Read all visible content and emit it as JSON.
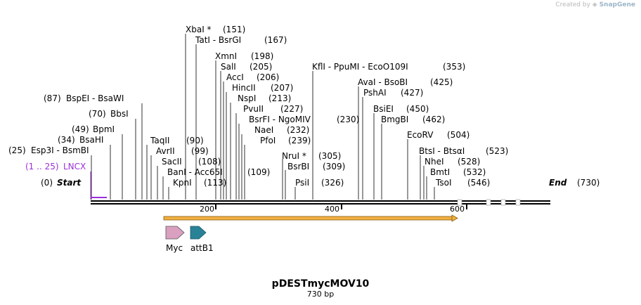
{
  "watermark": {
    "prefix": "Created by",
    "brand": "SnapGene"
  },
  "map": {
    "name": "pDESTmycMOV10",
    "length_label": "730 bp",
    "total_bp": 730
  },
  "ends": {
    "start": {
      "label": "Start",
      "pos": "(0)"
    },
    "end": {
      "label": "End",
      "pos": "(730)"
    }
  },
  "ticks": [
    "200",
    "400",
    "600"
  ],
  "feature_label": {
    "name": "LNCX",
    "range": "(1 .. 25)"
  },
  "features": [
    {
      "name": "Myc",
      "color": "#d9a0c0"
    },
    {
      "name": "attB1",
      "color": "#2a8296"
    }
  ],
  "orf_color": "#f0b040",
  "sites_left": [
    {
      "names": "Esp3I - BsmBI",
      "pos": "(25)"
    },
    {
      "names": "BsaHI",
      "pos": "(34)"
    },
    {
      "names": "BpmI",
      "pos": "(49)"
    },
    {
      "names": "BbsI",
      "pos": "(70)"
    },
    {
      "names": "BspEI - BsaWI",
      "pos": "(87)"
    }
  ],
  "sites_right": [
    {
      "names": "XbaI *",
      "pos": "(151)"
    },
    {
      "names": "TatI - BsrGI",
      "pos": "(167)"
    },
    {
      "names": "TaqII",
      "pos": "(90)"
    },
    {
      "names": "AvrII",
      "pos": "(99)"
    },
    {
      "names": "SacII",
      "pos": "(108)"
    },
    {
      "names": "BanI - Acc65I",
      "pos": "(109)"
    },
    {
      "names": "KpnI",
      "pos": "(113)"
    },
    {
      "names": "XmnI",
      "pos": "(198)"
    },
    {
      "names": "SalI",
      "pos": "(205)"
    },
    {
      "names": "AccI",
      "pos": "(206)"
    },
    {
      "names": "HincII",
      "pos": "(207)"
    },
    {
      "names": "NspI",
      "pos": "(213)"
    },
    {
      "names": "PvuII",
      "pos": "(227)"
    },
    {
      "names": "BsrFI - NgoMIV",
      "pos": "(230)"
    },
    {
      "names": "NaeI",
      "pos": "(232)"
    },
    {
      "names": "PfoI",
      "pos": "(239)"
    },
    {
      "names": "NruI *",
      "pos": "(305)"
    },
    {
      "names": "BsrBI",
      "pos": "(309)"
    },
    {
      "names": "PsiI",
      "pos": "(326)"
    },
    {
      "names": "KflI - PpuMI - EcoO109I",
      "pos": "(353)"
    },
    {
      "names": "AvaI - BsoBI",
      "pos": "(425)"
    },
    {
      "names": "PshAI",
      "pos": "(427)"
    },
    {
      "names": "BsiEI",
      "pos": "(450)"
    },
    {
      "names": "BmgBI",
      "pos": "(462)"
    },
    {
      "names": "EcoRV",
      "pos": "(504)"
    },
    {
      "names": "BtsI - BtsαI",
      "pos": "(523)"
    },
    {
      "names": "NheI",
      "pos": "(528)"
    },
    {
      "names": "BmtI",
      "pos": "(532)"
    },
    {
      "names": "TsoI",
      "pos": "(546)"
    }
  ]
}
